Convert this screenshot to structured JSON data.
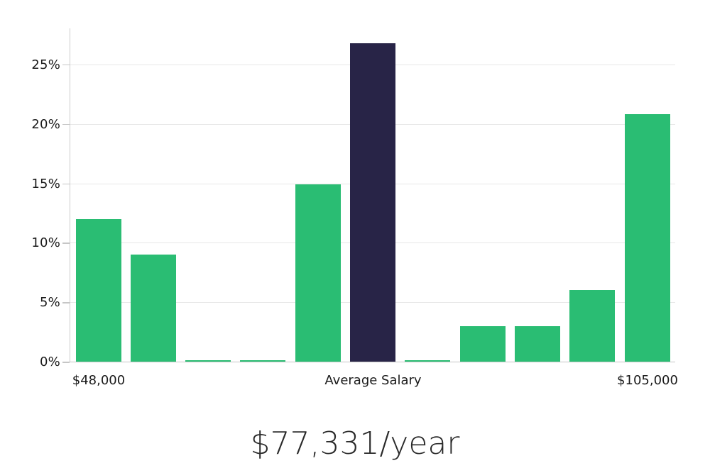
{
  "chart_data": {
    "type": "bar",
    "title": "$77,331/year",
    "description": "Salary distribution histogram with highlighted average salary bin",
    "values": [
      12.0,
      9.0,
      0.1,
      0.1,
      14.9,
      26.8,
      0.1,
      3.0,
      3.0,
      6.0,
      20.8
    ],
    "unit": "%",
    "highlighted_index": 5,
    "xtick_labels": [
      {
        "label": "$48,000",
        "bar_index": 0
      },
      {
        "label": "Average Salary",
        "bar_index": 5
      },
      {
        "label": "$105,000",
        "bar_index": 10
      }
    ],
    "yticks": [
      0,
      5,
      10,
      15,
      20,
      25
    ],
    "ytick_labels": [
      "0%",
      "5%",
      "10%",
      "15%",
      "20%",
      "25%"
    ],
    "ylim": [
      0,
      28.1
    ],
    "grid": true,
    "legend_position": "none",
    "colors": {
      "bar": "#2abd73",
      "bar_highlight": "#282447",
      "gridline": "#e7e7e7",
      "axis": "#c6c6c6",
      "label_text": "#1a1a1a",
      "title_text": "#2a2a2a",
      "background": "#ffffff"
    }
  },
  "footer": {
    "annual_salary": "$77,331/year"
  }
}
